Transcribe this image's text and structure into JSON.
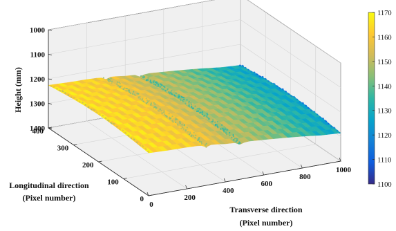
{
  "chart_data": {
    "type": "surface3d",
    "title": "",
    "x_axis": {
      "label_line1": "Transverse direction",
      "label_line2": "(Pixel number)",
      "range": [
        0,
        1000
      ],
      "ticks": [
        0,
        200,
        400,
        600,
        800,
        1000
      ]
    },
    "y_axis": {
      "label_line1": "Longitudinal direction",
      "label_line2": "(Pixel number)",
      "range": [
        0,
        400
      ],
      "ticks": [
        0,
        100,
        200,
        300,
        400
      ]
    },
    "z_axis": {
      "label": "Height (mm)",
      "range": [
        1000,
        1400
      ],
      "direction": "reversed",
      "ticks": [
        1000,
        1100,
        1200,
        1300,
        1400
      ]
    },
    "colorbar": {
      "range": [
        1100,
        1170
      ],
      "ticks": [
        1100,
        1110,
        1120,
        1130,
        1140,
        1150,
        1160,
        1170
      ],
      "colormap": "parula",
      "colors": [
        "#352a87",
        "#0f5cdd",
        "#1481d6",
        "#06a4ca",
        "#2eb7a4",
        "#87bf77",
        "#d1bb59",
        "#fec832",
        "#f9fb0e"
      ]
    },
    "grid": true,
    "surface": {
      "x": [
        0,
        100,
        200,
        300,
        400,
        500,
        600,
        700,
        800,
        900,
        1000
      ],
      "height_profile_mm": [
        1165,
        1163,
        1162,
        1160,
        1153,
        1150,
        1146,
        1142,
        1137,
        1131,
        1128
      ],
      "rut_positions_x": [
        300,
        480
      ]
    }
  }
}
